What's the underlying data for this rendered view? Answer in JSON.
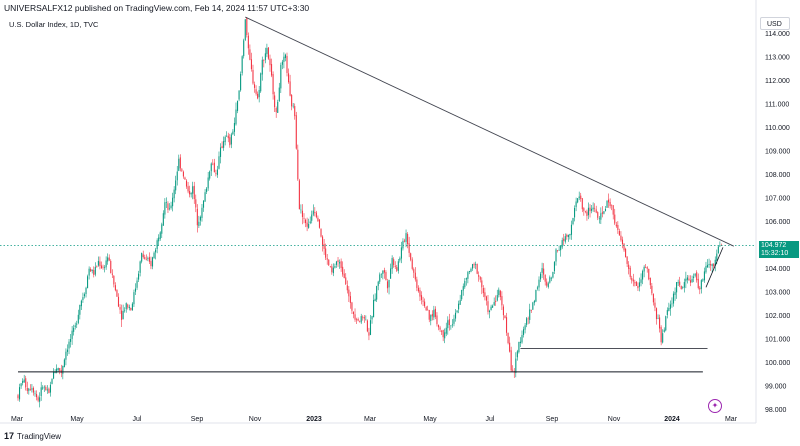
{
  "header": {
    "publish_text": "UNIVERSALFX12 published on TradingView.com, Feb 14, 2024 11:57 UTC+3:30",
    "symbol_text": "U.S. Dollar Index, 1D, TVC"
  },
  "currency_label": "USD",
  "last_price": {
    "value": "104.972",
    "countdown": "15:32:10"
  },
  "branding": {
    "logo_text": "TradingView",
    "logo_mark": "17"
  },
  "colors": {
    "up": "#089981",
    "down": "#f23645",
    "price_line": "#089981",
    "trendline": "#434651",
    "accent_icon": "#9c27b0"
  },
  "icons": {
    "alert_icon": "purple-circle-icon"
  },
  "chart_data": {
    "type": "candlestick",
    "title": "U.S. Dollar Index, 1D, TVC",
    "ylim": [
      98.0,
      114.8
    ],
    "y_ticks": [
      "114.000",
      "113.000",
      "112.000",
      "111.000",
      "110.000",
      "109.000",
      "108.000",
      "107.000",
      "106.000",
      "105.000",
      "104.000",
      "103.000",
      "102.000",
      "101.000",
      "100.000",
      "99.000",
      "98.000"
    ],
    "x_ticks": [
      "Mar",
      "May",
      "Jul",
      "Sep",
      "Nov",
      "2023",
      "Mar",
      "May",
      "Jul",
      "Sep",
      "Nov",
      "2024",
      "Mar"
    ],
    "price_path": [
      [
        0,
        98.6
      ],
      [
        3,
        99.3
      ],
      [
        6,
        98.9
      ],
      [
        9,
        99.0
      ],
      [
        13,
        98.4
      ],
      [
        16,
        99.0
      ],
      [
        20,
        98.6
      ],
      [
        22,
        99.4
      ],
      [
        25,
        99.8
      ],
      [
        28,
        99.6
      ],
      [
        31,
        100.5
      ],
      [
        34,
        101.0
      ],
      [
        37,
        101.5
      ],
      [
        40,
        102.5
      ],
      [
        43,
        103.0
      ],
      [
        46,
        104.0
      ],
      [
        49,
        103.8
      ],
      [
        52,
        104.3
      ],
      [
        55,
        104.0
      ],
      [
        58,
        104.5
      ],
      [
        61,
        103.6
      ],
      [
        64,
        102.8
      ],
      [
        67,
        102.0
      ],
      [
        70,
        102.5
      ],
      [
        73,
        102.3
      ],
      [
        76,
        103.2
      ],
      [
        80,
        104.6
      ],
      [
        83,
        104.3
      ],
      [
        86,
        104.2
      ],
      [
        89,
        104.9
      ],
      [
        92,
        105.7
      ],
      [
        95,
        106.8
      ],
      [
        98,
        106.4
      ],
      [
        101,
        107.4
      ],
      [
        104,
        108.6
      ],
      [
        107,
        108.0
      ],
      [
        110,
        107.2
      ],
      [
        113,
        107.4
      ],
      [
        116,
        106.0
      ],
      [
        119,
        106.5
      ],
      [
        122,
        107.5
      ],
      [
        125,
        108.6
      ],
      [
        128,
        108.0
      ],
      [
        131,
        109.0
      ],
      [
        134,
        109.7
      ],
      [
        137,
        109.3
      ],
      [
        140,
        110.2
      ],
      [
        143,
        111.5
      ],
      [
        146,
        113.8
      ],
      [
        147,
        114.7
      ],
      [
        149,
        113.2
      ],
      [
        152,
        112.0
      ],
      [
        155,
        111.2
      ],
      [
        158,
        112.8
      ],
      [
        161,
        113.4
      ],
      [
        164,
        112.1
      ],
      [
        167,
        110.5
      ],
      [
        170,
        112.5
      ],
      [
        173,
        113.0
      ],
      [
        176,
        111.2
      ],
      [
        179,
        110.6
      ],
      [
        182,
        106.6
      ],
      [
        185,
        106.0
      ],
      [
        188,
        105.8
      ],
      [
        191,
        106.6
      ],
      [
        194,
        106.2
      ],
      [
        197,
        105.0
      ],
      [
        200,
        104.3
      ],
      [
        203,
        103.8
      ],
      [
        206,
        104.3
      ],
      [
        209,
        104.1
      ],
      [
        212,
        103.5
      ],
      [
        215,
        102.4
      ],
      [
        218,
        102.0
      ],
      [
        221,
        101.8
      ],
      [
        224,
        102.0
      ],
      [
        227,
        101.2
      ],
      [
        230,
        102.5
      ],
      [
        233,
        103.5
      ],
      [
        236,
        104.0
      ],
      [
        239,
        103.3
      ],
      [
        242,
        104.4
      ],
      [
        245,
        104.0
      ],
      [
        248,
        104.8
      ],
      [
        251,
        105.5
      ],
      [
        254,
        104.4
      ],
      [
        257,
        103.5
      ],
      [
        260,
        102.9
      ],
      [
        263,
        102.5
      ],
      [
        266,
        101.8
      ],
      [
        269,
        102.2
      ],
      [
        272,
        101.5
      ],
      [
        275,
        101.2
      ],
      [
        278,
        101.8
      ],
      [
        281,
        101.5
      ],
      [
        284,
        102.3
      ],
      [
        287,
        103.0
      ],
      [
        290,
        103.6
      ],
      [
        293,
        104.0
      ],
      [
        296,
        104.1
      ],
      [
        299,
        103.5
      ],
      [
        302,
        102.7
      ],
      [
        305,
        102.1
      ],
      [
        308,
        102.6
      ],
      [
        311,
        103.0
      ],
      [
        314,
        102.2
      ],
      [
        317,
        100.9
      ],
      [
        319,
        99.8
      ],
      [
        321,
        99.6
      ],
      [
        324,
        100.8
      ],
      [
        327,
        101.5
      ],
      [
        330,
        101.9
      ],
      [
        333,
        102.5
      ],
      [
        336,
        103.3
      ],
      [
        339,
        103.9
      ],
      [
        342,
        103.2
      ],
      [
        345,
        103.7
      ],
      [
        348,
        104.7
      ],
      [
        351,
        105.0
      ],
      [
        354,
        105.4
      ],
      [
        357,
        105.6
      ],
      [
        360,
        106.5
      ],
      [
        363,
        107.2
      ],
      [
        365,
        106.6
      ],
      [
        367,
        106.3
      ],
      [
        370,
        106.5
      ],
      [
        373,
        106.6
      ],
      [
        376,
        106.0
      ],
      [
        379,
        106.5
      ],
      [
        382,
        106.9
      ],
      [
        385,
        106.4
      ],
      [
        388,
        105.5
      ],
      [
        391,
        105.0
      ],
      [
        394,
        104.2
      ],
      [
        397,
        103.5
      ],
      [
        400,
        103.2
      ],
      [
        403,
        103.6
      ],
      [
        406,
        104.1
      ],
      [
        409,
        103.2
      ],
      [
        412,
        102.2
      ],
      [
        414,
        101.8
      ],
      [
        416,
        101.0
      ],
      [
        418,
        101.5
      ],
      [
        420,
        102.2
      ],
      [
        423,
        102.6
      ],
      [
        426,
        103.4
      ],
      [
        429,
        103.1
      ],
      [
        432,
        103.6
      ],
      [
        435,
        103.5
      ],
      [
        438,
        103.7
      ],
      [
        441,
        103.1
      ],
      [
        444,
        103.9
      ],
      [
        447,
        104.2
      ],
      [
        450,
        104.0
      ],
      [
        453,
        104.9
      ],
      [
        455,
        104.97
      ]
    ],
    "trendline_descending": {
      "from": {
        "bar": 147,
        "price": 114.7
      },
      "to": {
        "bar": 463,
        "price": 104.95
      }
    },
    "support_line_1": {
      "from_bar": 0,
      "to_bar": 443,
      "price": 99.6
    },
    "support_line_2": {
      "from_bar": 325,
      "to_bar": 446,
      "price": 100.6
    },
    "rising_line": {
      "from": {
        "bar": 445,
        "price": 103.2
      },
      "to": {
        "bar": 456,
        "price": 104.9
      }
    },
    "last_price_value": 104.972,
    "grid": false
  }
}
